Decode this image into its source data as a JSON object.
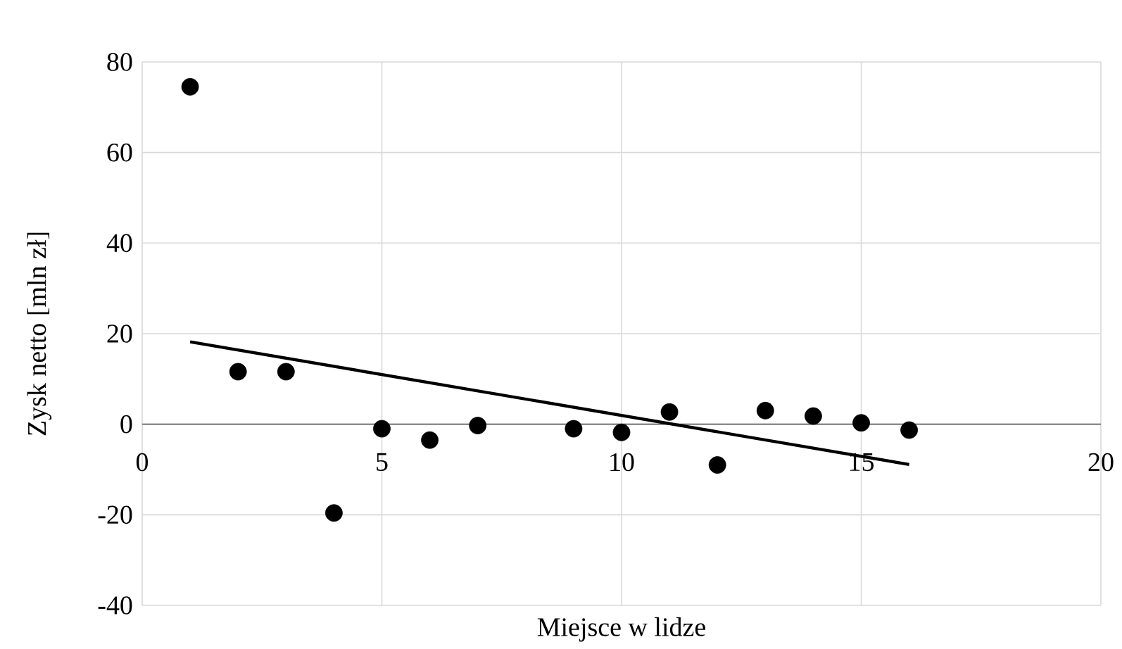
{
  "chart_data": {
    "type": "scatter",
    "xlabel": "Miejsce w lidze",
    "ylabel": "Zysk netto [mln zł]",
    "xlim": [
      0,
      20
    ],
    "xticks": [
      0,
      5,
      10,
      15,
      20
    ],
    "ylim": [
      -40,
      80
    ],
    "yticks": [
      -40,
      -20,
      0,
      20,
      40,
      60,
      80
    ],
    "grid": true,
    "series": [
      {
        "color": "#000000",
        "marker": "circle",
        "x": [
          1,
          2,
          3,
          4,
          5,
          6,
          7,
          9,
          10,
          11,
          12,
          13,
          14,
          15,
          16
        ],
        "values": [
          74.5,
          11.6,
          11.6,
          -19.6,
          -1,
          -3.5,
          -0.3,
          -1,
          -1.8,
          2.7,
          -9,
          3,
          1.8,
          0.3,
          -1.3
        ]
      },
      {
        "type": "line",
        "color": "#000000",
        "marker": "none",
        "line_style": "solid",
        "x": [
          1,
          16
        ],
        "values": [
          18.2,
          -8.9
        ]
      }
    ]
  }
}
